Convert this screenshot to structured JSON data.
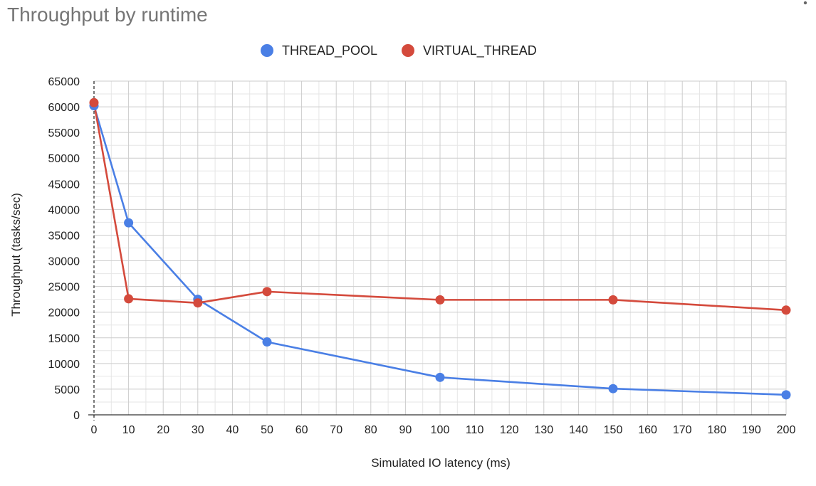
{
  "chart_data": {
    "type": "line",
    "title": "Throughput by runtime",
    "xlabel": "Simulated IO latency (ms)",
    "ylabel": "Throughput (tasks/sec)",
    "xlim": [
      0,
      200
    ],
    "ylim": [
      0,
      65000
    ],
    "x_ticks": [
      0,
      10,
      20,
      30,
      40,
      50,
      60,
      70,
      80,
      90,
      100,
      110,
      120,
      130,
      140,
      150,
      160,
      170,
      180,
      190,
      200
    ],
    "y_ticks": [
      0,
      5000,
      10000,
      15000,
      20000,
      25000,
      30000,
      35000,
      40000,
      45000,
      50000,
      55000,
      60000,
      65000
    ],
    "grid": true,
    "legend_position": "top-center",
    "x": [
      0,
      10,
      30,
      50,
      100,
      150,
      200
    ],
    "series": [
      {
        "name": "THREAD_POOL",
        "color": "#4a7fe5",
        "values": [
          60200,
          37400,
          22500,
          14200,
          7300,
          5100,
          3900
        ]
      },
      {
        "name": "VIRTUAL_THREAD",
        "color": "#d44a3c",
        "values": [
          60800,
          22600,
          21800,
          24000,
          22400,
          22400,
          20400
        ]
      }
    ]
  }
}
